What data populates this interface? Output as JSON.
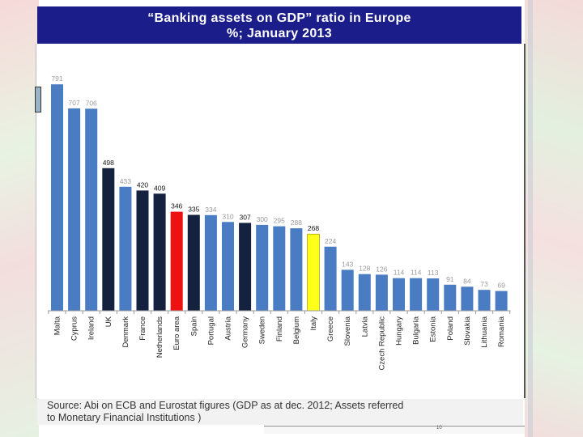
{
  "slide": {
    "title_line1": "“Banking assets on GDP” ratio in Europe",
    "title_line2": "%; January 2013",
    "source_line1": "Source: Abi on ECB and Eurostat figures (GDP as at dec. 2012; Assets referred",
    "source_line2": "to Monetary Financial Institutions )",
    "page_number": "10"
  },
  "colors": {
    "default_bar": "#4a7cc4",
    "dark_bar": "#15223f",
    "euro_area_bar": "#ee1111",
    "italy_bar": "#ffff1a",
    "label_light": "#9a9a9a",
    "label_dark": "#111111"
  },
  "chart_data": {
    "type": "bar",
    "title": "“Banking assets on GDP” ratio in Europe",
    "subtitle": "%; January 2013",
    "xlabel": "",
    "ylabel": "",
    "ylim": [
      0,
      800
    ],
    "grid": false,
    "legend": "none",
    "categories": [
      "Malta",
      "Cyprus",
      "Ireland",
      "UK",
      "Denmark",
      "France",
      "Netherlands",
      "Euro area",
      "Spain",
      "Portugal",
      "Austria",
      "Germany",
      "Sweden",
      "Finland",
      "Belgium",
      "Italy",
      "Greece",
      "Slovenia",
      "Latvia",
      "Czech Republic",
      "Hungary",
      "Bulgaria",
      "Estonia",
      "Poland",
      "Slovakia",
      "Lithuania",
      "Romania"
    ],
    "values": [
      791,
      707,
      706,
      498,
      433,
      420,
      409,
      346,
      335,
      334,
      310,
      307,
      300,
      295,
      288,
      268,
      224,
      143,
      128,
      126,
      114,
      114,
      113,
      91,
      84,
      73,
      69
    ],
    "bar_colors": [
      "default",
      "default",
      "default",
      "dark",
      "default",
      "dark",
      "dark",
      "euro_area",
      "dark",
      "default",
      "default",
      "dark",
      "default",
      "default",
      "default",
      "italy",
      "default",
      "default",
      "default",
      "default",
      "default",
      "default",
      "default",
      "default",
      "default",
      "default",
      "default"
    ],
    "label_emphasis": [
      "light",
      "light",
      "light",
      "dark",
      "light",
      "dark",
      "dark",
      "dark",
      "dark",
      "light",
      "light",
      "dark",
      "light",
      "light",
      "light",
      "dark",
      "light",
      "light",
      "light",
      "light",
      "light",
      "light",
      "light",
      "light",
      "light",
      "light",
      "light"
    ]
  }
}
